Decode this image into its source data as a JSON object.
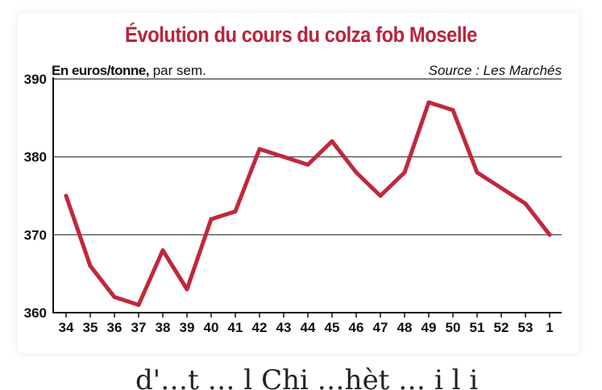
{
  "chart_data": {
    "type": "line",
    "title": "Évolution du cours du colza fob Moselle",
    "unit_label_bold": "En euros/tonne,",
    "unit_label_rest": " par sem.",
    "source": "Source : Les Marchés",
    "categories": [
      "34",
      "35",
      "36",
      "37",
      "38",
      "39",
      "40",
      "41",
      "42",
      "43",
      "44",
      "45",
      "46",
      "47",
      "48",
      "49",
      "50",
      "51",
      "52",
      "53",
      "1"
    ],
    "values": [
      375,
      366,
      362,
      361,
      368,
      363,
      372,
      373,
      381,
      380,
      379,
      382,
      378,
      375,
      378,
      387,
      386,
      378,
      376,
      374,
      370
    ],
    "ylim": [
      360,
      390
    ],
    "yticks": [
      360,
      370,
      380,
      390
    ],
    "grid": true,
    "line_color": "#c0283e"
  },
  "page_text": {
    "bottom_fragment": "d'…t … l  Chi   …hèt … i   l i"
  }
}
